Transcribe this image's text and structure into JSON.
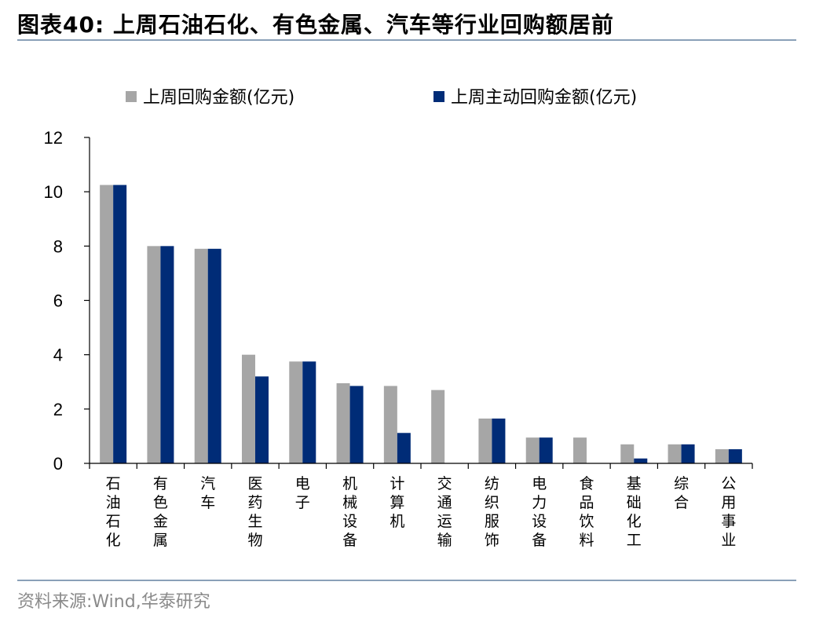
{
  "page": {
    "title": "图表40:  上周石油石化、有色金属、汽车等行业回购额居前",
    "source": "资料来源:Wind,华泰研究"
  },
  "chart_data": {
    "type": "bar",
    "title": "",
    "xlabel": "",
    "ylabel": "",
    "ylim": [
      0,
      12
    ],
    "yticks": [
      0,
      2,
      4,
      6,
      8,
      10,
      12
    ],
    "legend_position": "top",
    "grid": false,
    "categories": [
      "石油石化",
      "有色金属",
      "汽车",
      "医药生物",
      "电子",
      "机械设备",
      "计算机",
      "交通运输",
      "纺织服饰",
      "电力设备",
      "食品饮料",
      "基础化工",
      "综合",
      "公用事业"
    ],
    "series": [
      {
        "name": "上周回购金额(亿元)",
        "color": "#a6a6a6",
        "values": [
          10.25,
          8.0,
          7.9,
          4.0,
          3.75,
          2.95,
          2.85,
          2.7,
          1.65,
          0.95,
          0.95,
          0.7,
          0.7,
          0.52
        ]
      },
      {
        "name": "上周主动回购金额(亿元)",
        "color": "#002c77",
        "values": [
          10.25,
          8.0,
          7.9,
          3.2,
          3.75,
          2.85,
          1.12,
          0.0,
          1.65,
          0.95,
          0.0,
          0.18,
          0.7,
          0.52
        ]
      }
    ]
  }
}
